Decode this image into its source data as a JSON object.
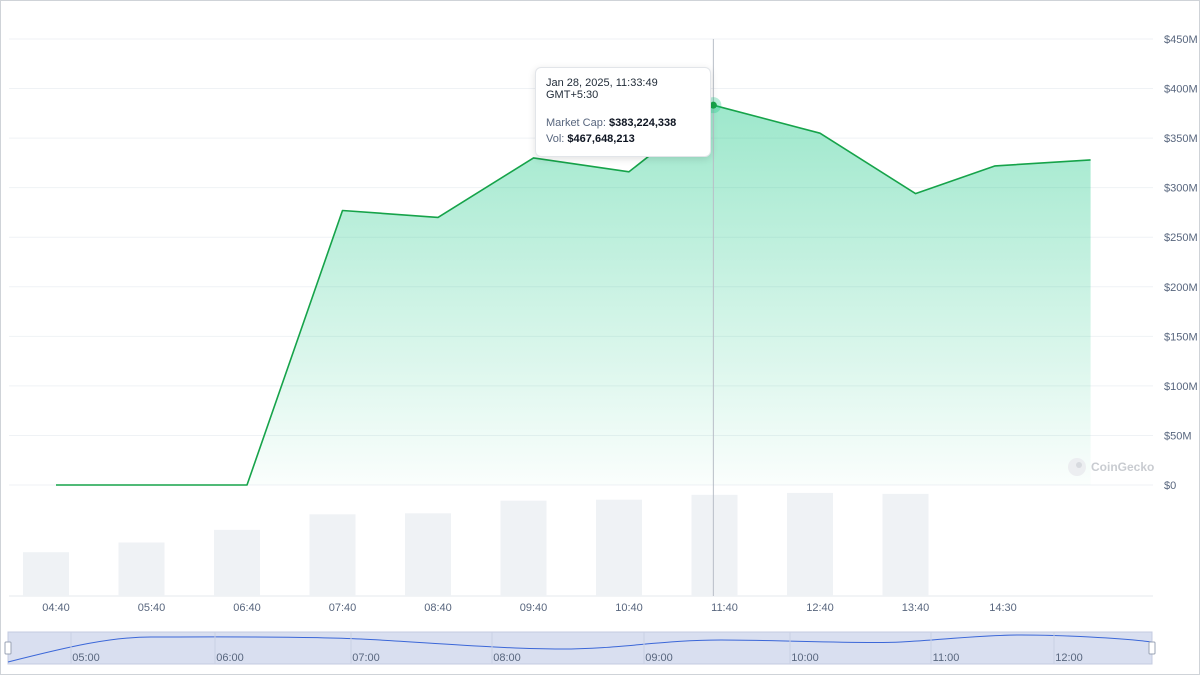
{
  "chart_data": {
    "type": "area",
    "y_axis": {
      "ticks": [
        "$0",
        "$50M",
        "$100M",
        "$150M",
        "$200M",
        "$250M",
        "$300M",
        "$350M",
        "$400M",
        "$450M"
      ],
      "ylim": [
        0,
        450000000
      ]
    },
    "x_tick_labels": [
      "04:40",
      "05:40",
      "06:40",
      "07:40",
      "08:40",
      "09:40",
      "10:40",
      "11:40",
      "12:40",
      "13:40",
      "14:30"
    ],
    "series": [
      {
        "values": [
          {
            "x": "04:40",
            "y": 0
          },
          {
            "x": "06:40",
            "y": 0
          },
          {
            "x": "07:40",
            "y": 277000000
          },
          {
            "x": "08:40",
            "y": 270000000
          },
          {
            "x": "09:40",
            "y": 330000000
          },
          {
            "x": "10:40",
            "y": 316000000
          },
          {
            "x": "11:33",
            "y": 383224338
          },
          {
            "x": "12:40",
            "y": 355000000
          },
          {
            "x": "13:40",
            "y": 294000000
          },
          {
            "x": "14:30",
            "y": 322000000
          },
          {
            "x": "15:30",
            "y": 328000000
          }
        ]
      }
    ],
    "volume": {
      "values": [
        {
          "x": "04:40",
          "y": 45000000
        },
        {
          "x": "05:40",
          "y": 55000000
        },
        {
          "x": "06:40",
          "y": 68000000
        },
        {
          "x": "07:40",
          "y": 84000000
        },
        {
          "x": "08:40",
          "y": 85000000
        },
        {
          "x": "09:40",
          "y": 98000000
        },
        {
          "x": "10:40",
          "y": 99000000
        },
        {
          "x": "11:33",
          "y": 104000000
        },
        {
          "x": "12:40",
          "y": 106000000
        },
        {
          "x": "13:40",
          "y": 105000000
        }
      ]
    },
    "navigator_ticks": [
      "05:00",
      "06:00",
      "07:00",
      "08:00",
      "09:00",
      "10:00",
      "11:00",
      "12:00"
    ],
    "grid": true,
    "colors": {
      "line": "#16a34a",
      "area_top": "#16c784",
      "volume_bar": "#eff2f5",
      "navigator_bg": "#d9dff0",
      "navigator_line": "#3b67d8"
    }
  },
  "tooltip": {
    "date": "Jan 28, 2025, 11:33:49 GMT+5:30",
    "market_cap_label": "Market Cap:",
    "market_cap_value": "$383,224,338",
    "vol_label": "Vol:",
    "vol_value": "$467,648,213"
  },
  "watermark": "CoinGecko"
}
